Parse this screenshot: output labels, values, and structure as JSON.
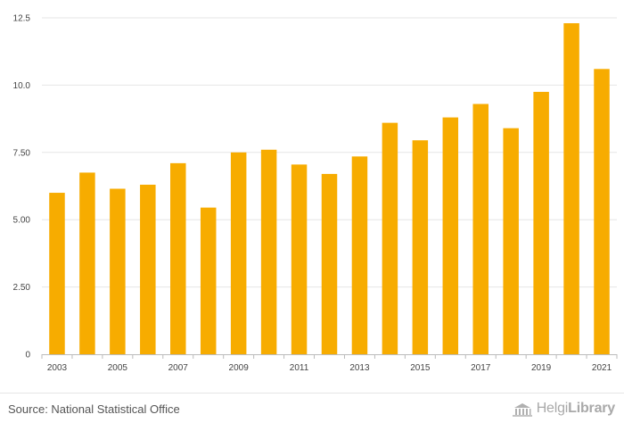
{
  "chart_data": {
    "type": "bar",
    "categories": [
      "2003",
      "2004",
      "2005",
      "2006",
      "2007",
      "2008",
      "2009",
      "2010",
      "2011",
      "2012",
      "2013",
      "2014",
      "2015",
      "2016",
      "2017",
      "2018",
      "2019",
      "2020",
      "2021"
    ],
    "values": [
      6.0,
      6.75,
      6.15,
      6.3,
      7.1,
      5.45,
      7.5,
      7.6,
      7.05,
      6.7,
      7.35,
      8.6,
      7.95,
      8.8,
      9.3,
      8.4,
      9.75,
      12.3,
      10.6
    ],
    "x_tick_labels": [
      "2003",
      "2005",
      "2007",
      "2009",
      "2011",
      "2013",
      "2015",
      "2017",
      "2019",
      "2021"
    ],
    "y_ticks": [
      0,
      2.5,
      5.0,
      7.5,
      10.0,
      12.5
    ],
    "y_tick_labels": [
      "0",
      "2.50",
      "5.00",
      "7.50",
      "10.0",
      "12.5"
    ],
    "ylim": [
      0,
      12.5
    ],
    "title": "",
    "xlabel": "",
    "ylabel": "",
    "grid": true,
    "bar_color": "#f7ac00"
  },
  "footer": {
    "source": "Source: National Statistical Office",
    "brand_light": "Helgi",
    "brand_bold": "Library"
  }
}
